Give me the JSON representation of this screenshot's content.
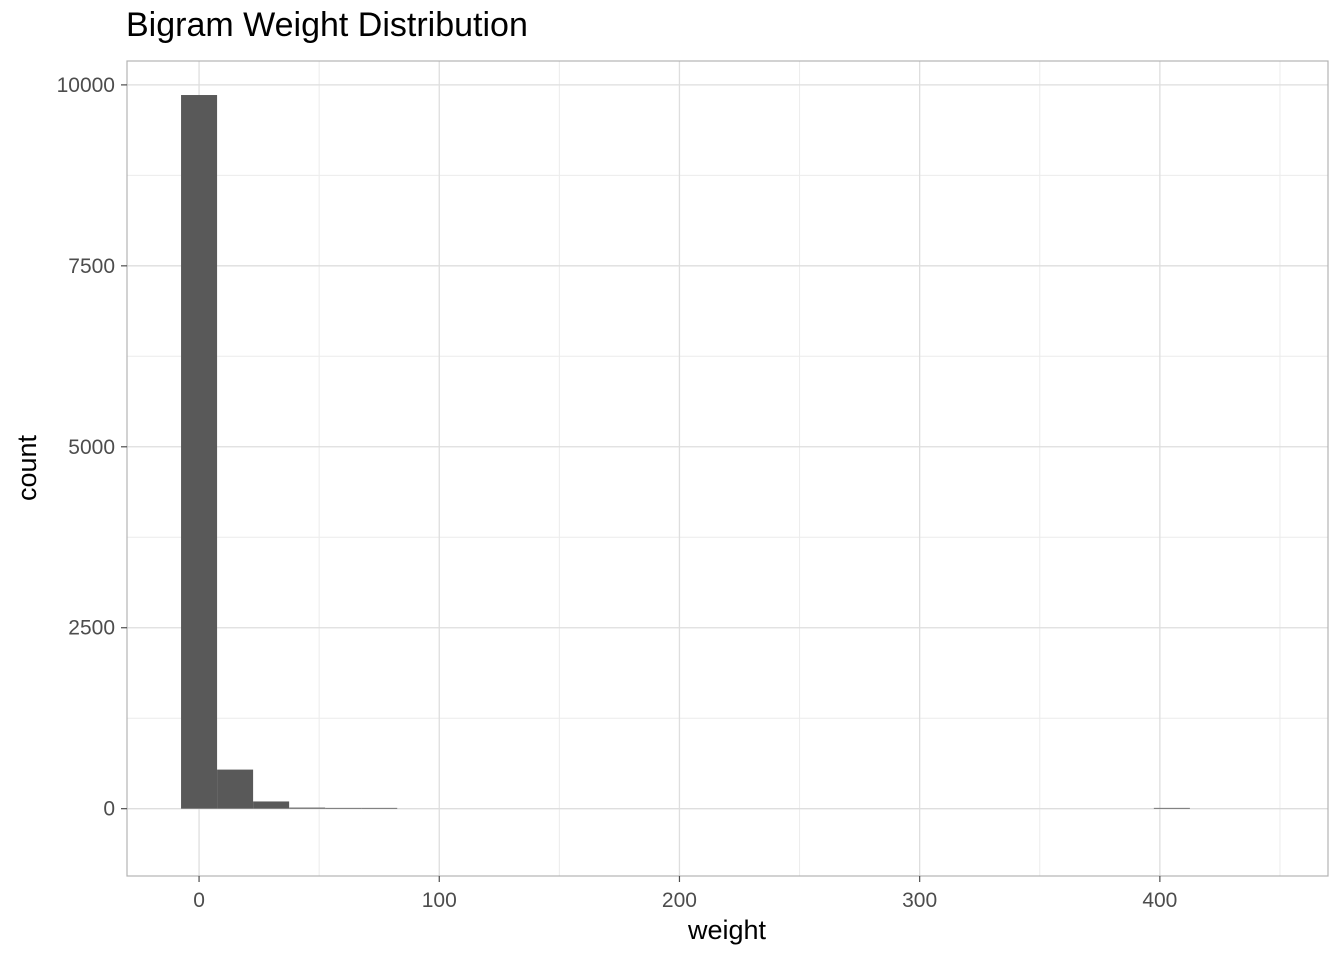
{
  "chart_data": {
    "type": "bar",
    "title": "Bigram Weight Distribution",
    "xlabel": "weight",
    "ylabel": "count",
    "xlim": [
      -30,
      470
    ],
    "ylim": [
      -930,
      10330
    ],
    "x_ticks": [
      0,
      100,
      200,
      300,
      400
    ],
    "x_tick_labels": [
      "0",
      "100",
      "200",
      "300",
      "400"
    ],
    "y_ticks": [
      0,
      2500,
      5000,
      7500,
      10000
    ],
    "y_tick_labels": [
      "0",
      "2500",
      "5000",
      "7500",
      "10000"
    ],
    "bin_width": 15,
    "bins": [
      {
        "x0": -7.5,
        "x1": 7.5,
        "count": 9860
      },
      {
        "x0": 7.5,
        "x1": 22.5,
        "count": 540
      },
      {
        "x0": 22.5,
        "x1": 37.5,
        "count": 100
      },
      {
        "x0": 37.5,
        "x1": 52.5,
        "count": 15
      },
      {
        "x0": 52.5,
        "x1": 67.5,
        "count": 6
      },
      {
        "x0": 67.5,
        "x1": 82.5,
        "count": 3
      },
      {
        "x0": 397.5,
        "x1": 412.5,
        "count": 1
      }
    ],
    "grid": true,
    "colors": {
      "bar": "#595959",
      "panel_border": "#b3b3b3",
      "grid_major": "#dedede",
      "grid_minor": "#ececec",
      "tick_label": "#4d4d4d",
      "axis_title": "#000000"
    }
  }
}
